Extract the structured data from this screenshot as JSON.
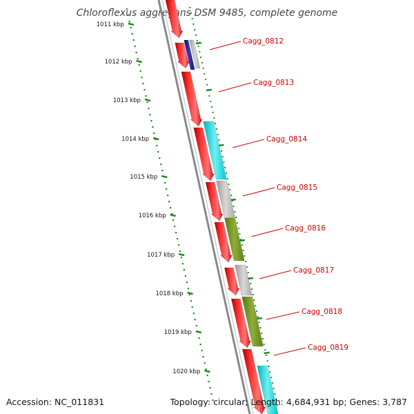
{
  "title": "Chloroflexus aggregans DSM 9485, complete genome",
  "accession": "Accession: NC_011831",
  "topology": "Topology: circular; Length: 4,684,931 bp; Genes: 3,787",
  "colors": {
    "cds": "#ee1111",
    "cyan": "#11cccc",
    "grey": "#b8b8b8",
    "olive": "#6e8a22",
    "navy": "#1a1a8a",
    "label": "#cc0000",
    "ruler": "#228822",
    "backbone": "#888888"
  },
  "kbp_labels": [
    "1011 kbp",
    "1012 kbp",
    "1013 kbp",
    "1014 kbp",
    "1015 kbp",
    "1016 kbp",
    "1017 kbp",
    "1018 kbp",
    "1019 kbp",
    "1020 kbp"
  ],
  "gene_labels": [
    "Cagg_0812",
    "Cagg_0813",
    "Cagg_0814",
    "Cagg_0815",
    "Cagg_0816",
    "Cagg_0817",
    "Cagg_0818",
    "Cagg_0819"
  ]
}
